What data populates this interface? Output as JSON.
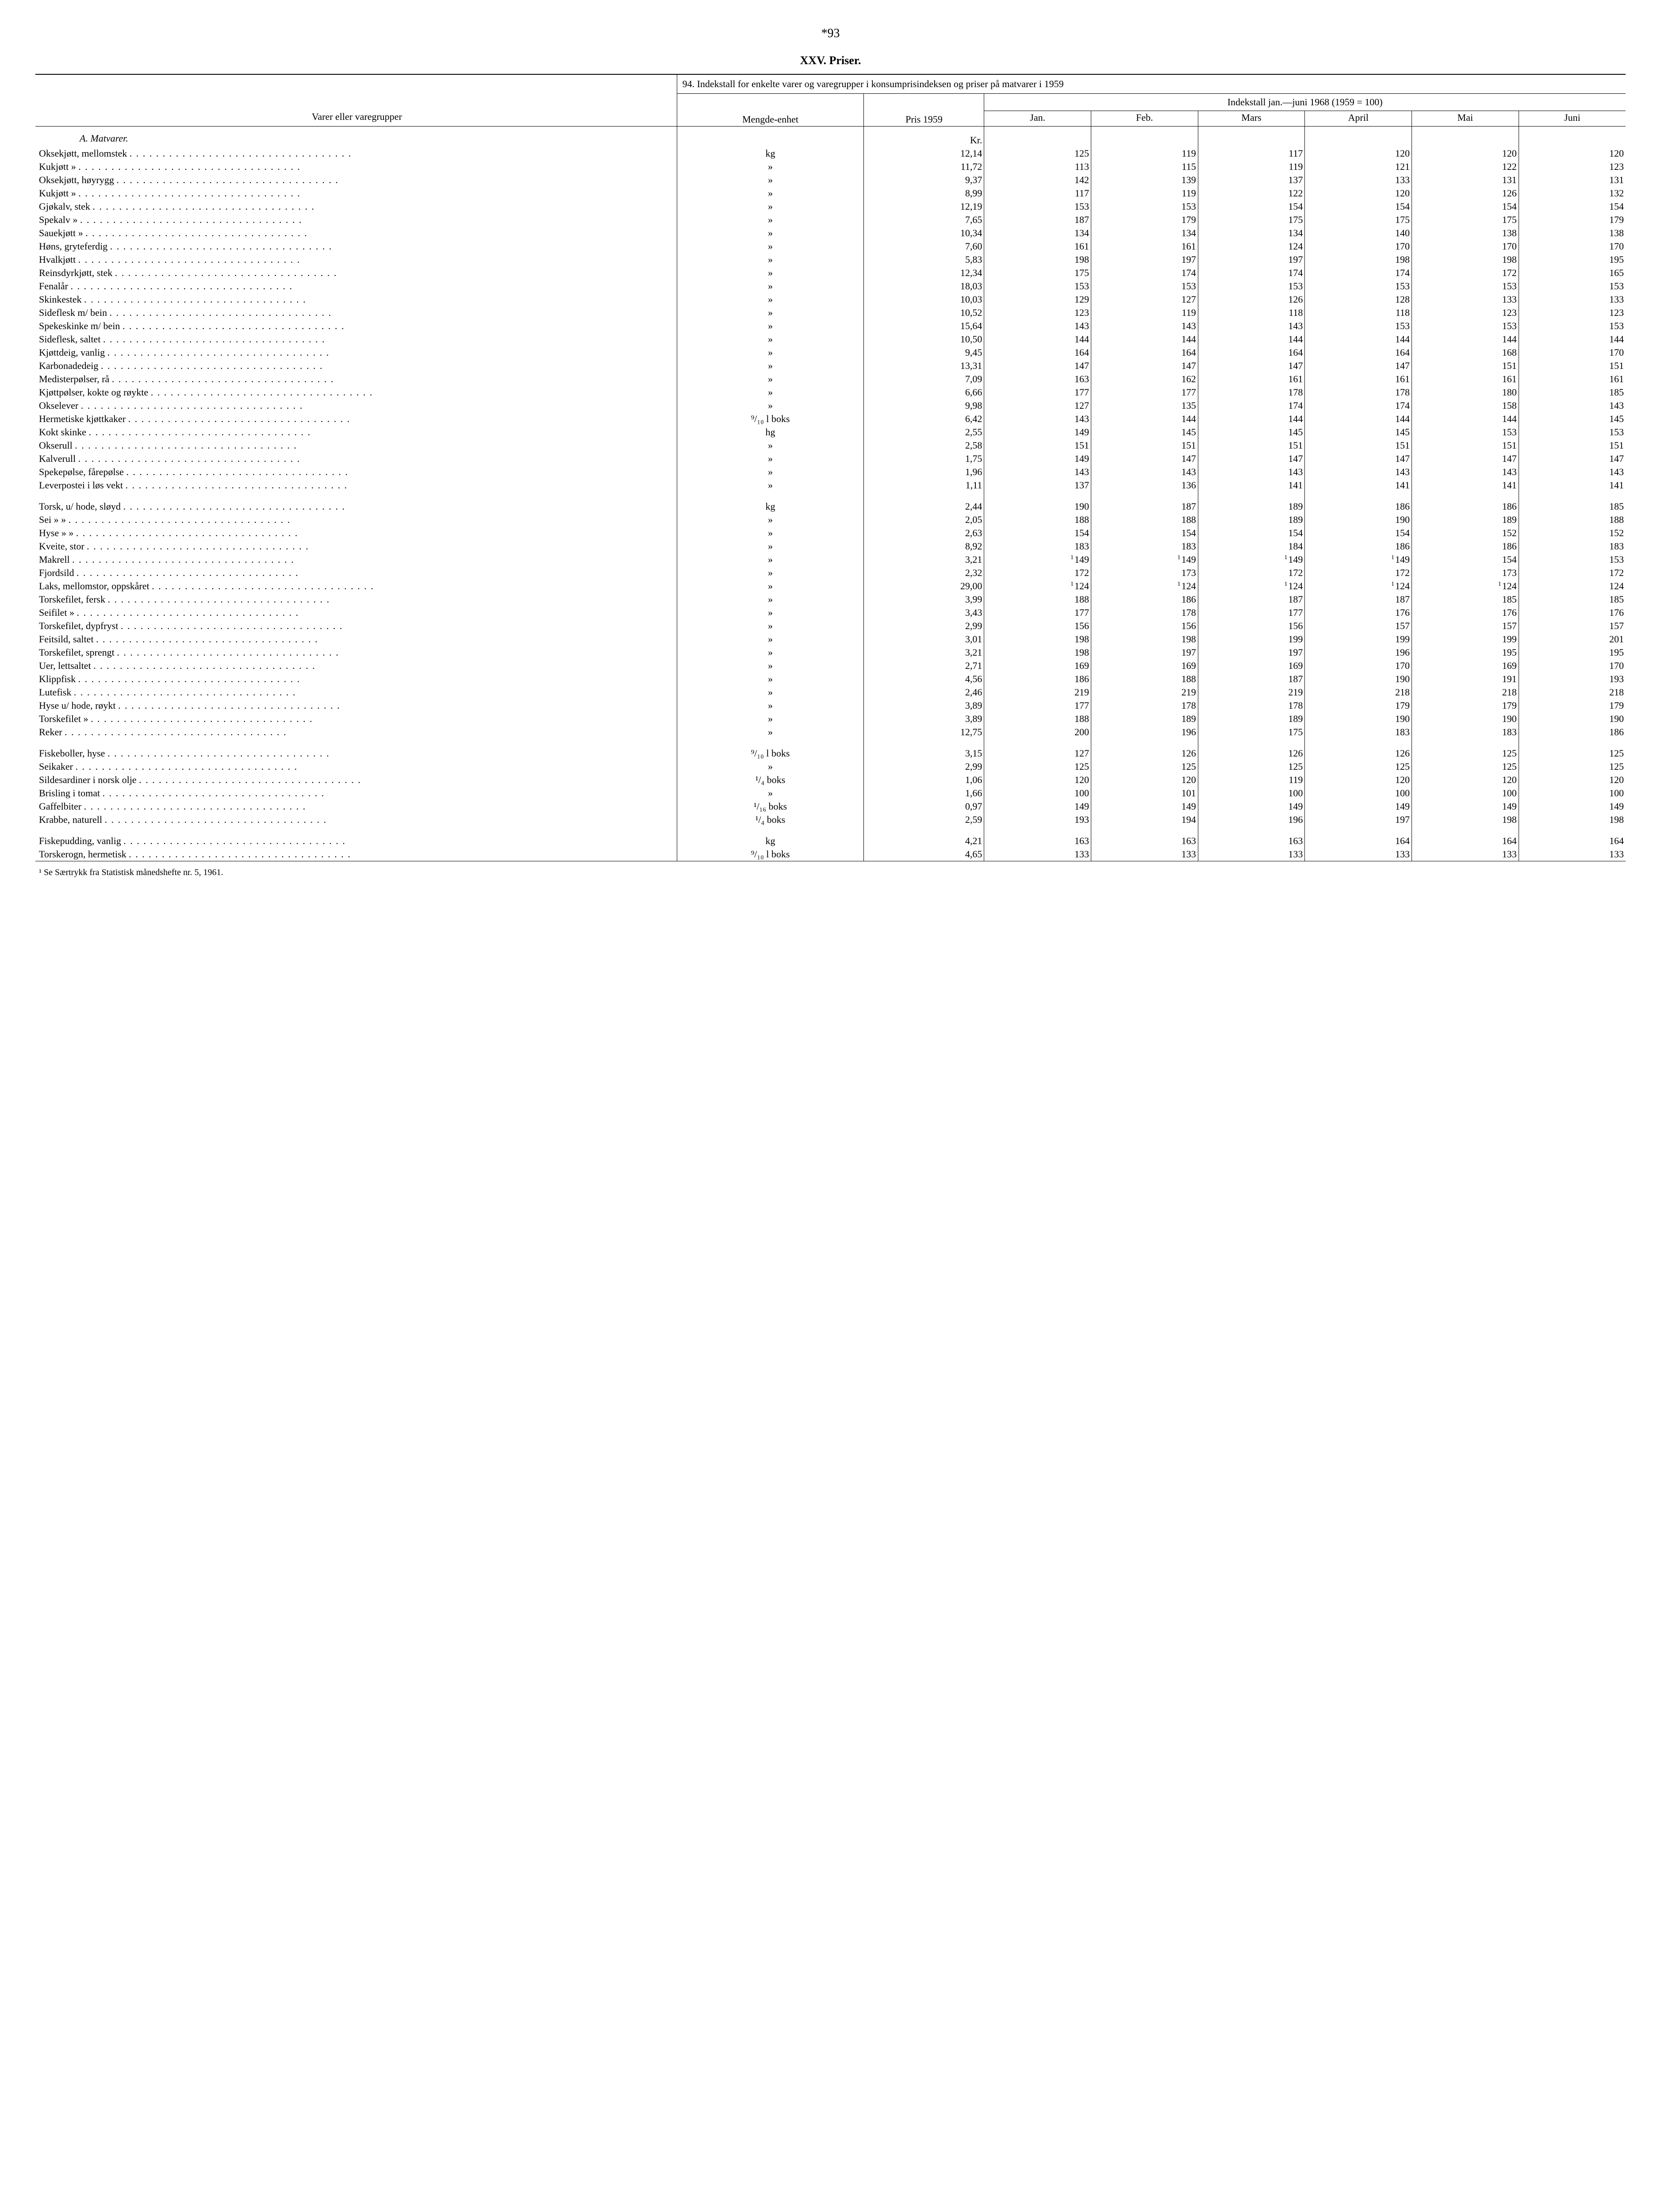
{
  "pageNumber": "*93",
  "sectionTitle": "XXV. Priser.",
  "tableCaption": "94. Indekstall for enkelte varer og varegrupper i konsumprisindeksen og priser på matvarer i 1959",
  "colHeaders": {
    "varer": "Varer eller varegrupper",
    "mengde": "Mengde-enhet",
    "pris": "Pris 1959",
    "indeksHeader": "Indekstall jan.—juni 1968 (1959 = 100)",
    "months": [
      "Jan.",
      "Feb.",
      "Mars",
      "April",
      "Mai",
      "Juni"
    ]
  },
  "groupTitle": "A. Matvarer.",
  "krLabel": "Kr.",
  "footnote": "¹ Se Særtrykk fra Statistisk månedshefte nr. 5, 1961.",
  "rows": [
    {
      "label": "Oksekjøtt, mellomstek",
      "unit": "kg",
      "price": "12,14",
      "idx": [
        "125",
        "119",
        "117",
        "120",
        "120",
        "120"
      ]
    },
    {
      "label": "Kukjøtt          »",
      "unit": "»",
      "price": "11,72",
      "idx": [
        "113",
        "115",
        "119",
        "121",
        "122",
        "123"
      ]
    },
    {
      "label": "Oksekjøtt, høyrygg",
      "unit": "»",
      "price": "9,37",
      "idx": [
        "142",
        "139",
        "137",
        "133",
        "131",
        "131"
      ]
    },
    {
      "label": "Kukjøtt          »",
      "unit": "»",
      "price": "8,99",
      "idx": [
        "117",
        "119",
        "122",
        "120",
        "126",
        "132"
      ]
    },
    {
      "label": "Gjøkalv, stek",
      "unit": "»",
      "price": "12,19",
      "idx": [
        "153",
        "153",
        "154",
        "154",
        "154",
        "154"
      ]
    },
    {
      "label": "Spekalv    »",
      "unit": "»",
      "price": "7,65",
      "idx": [
        "187",
        "179",
        "175",
        "175",
        "175",
        "179"
      ]
    },
    {
      "label": "Sauekjøtt »",
      "unit": "»",
      "price": "10,34",
      "idx": [
        "134",
        "134",
        "134",
        "140",
        "138",
        "138"
      ]
    },
    {
      "label": "Høns, gryteferdig",
      "unit": "»",
      "price": "7,60",
      "idx": [
        "161",
        "161",
        "124",
        "170",
        "170",
        "170"
      ]
    },
    {
      "label": "Hvalkjøtt",
      "unit": "»",
      "price": "5,83",
      "idx": [
        "198",
        "197",
        "197",
        "198",
        "198",
        "195"
      ]
    },
    {
      "label": "Reinsdyrkjøtt, stek",
      "unit": "»",
      "price": "12,34",
      "idx": [
        "175",
        "174",
        "174",
        "174",
        "172",
        "165"
      ]
    },
    {
      "label": "Fenalår",
      "unit": "»",
      "price": "18,03",
      "idx": [
        "153",
        "153",
        "153",
        "153",
        "153",
        "153"
      ]
    },
    {
      "label": "Skinkestek",
      "unit": "»",
      "price": "10,03",
      "idx": [
        "129",
        "127",
        "126",
        "128",
        "133",
        "133"
      ]
    },
    {
      "label": "Sideflesk m/ bein",
      "unit": "»",
      "price": "10,52",
      "idx": [
        "123",
        "119",
        "118",
        "118",
        "123",
        "123"
      ]
    },
    {
      "label": "Spekeskinke m/ bein",
      "unit": "»",
      "price": "15,64",
      "idx": [
        "143",
        "143",
        "143",
        "153",
        "153",
        "153"
      ]
    },
    {
      "label": "Sideflesk, saltet",
      "unit": "»",
      "price": "10,50",
      "idx": [
        "144",
        "144",
        "144",
        "144",
        "144",
        "144"
      ]
    },
    {
      "label": "Kjøttdeig, vanlig",
      "unit": "»",
      "price": "9,45",
      "idx": [
        "164",
        "164",
        "164",
        "164",
        "168",
        "170"
      ]
    },
    {
      "label": "Karbonadedeig",
      "unit": "»",
      "price": "13,31",
      "idx": [
        "147",
        "147",
        "147",
        "147",
        "151",
        "151"
      ]
    },
    {
      "label": "Medisterpølser, rå",
      "unit": "»",
      "price": "7,09",
      "idx": [
        "163",
        "162",
        "161",
        "161",
        "161",
        "161"
      ]
    },
    {
      "label": "Kjøttpølser, kokte og røykte",
      "unit": "»",
      "price": "6,66",
      "idx": [
        "177",
        "177",
        "178",
        "178",
        "180",
        "185"
      ]
    },
    {
      "label": "Okselever",
      "unit": "»",
      "price": "9,98",
      "idx": [
        "127",
        "135",
        "174",
        "174",
        "158",
        "143"
      ]
    },
    {
      "label": "Hermetiske kjøttkaker",
      "unit": "⁹/₁₀ l boks",
      "price": "6,42",
      "idx": [
        "143",
        "144",
        "144",
        "144",
        "144",
        "145"
      ]
    },
    {
      "label": "Kokt skinke",
      "unit": "hg",
      "price": "2,55",
      "idx": [
        "149",
        "145",
        "145",
        "145",
        "153",
        "153"
      ]
    },
    {
      "label": "Okserull",
      "unit": "»",
      "price": "2,58",
      "idx": [
        "151",
        "151",
        "151",
        "151",
        "151",
        "151"
      ]
    },
    {
      "label": "Kalverull",
      "unit": "»",
      "price": "1,75",
      "idx": [
        "149",
        "147",
        "147",
        "147",
        "147",
        "147"
      ]
    },
    {
      "label": "Spekepølse, fårepølse",
      "unit": "»",
      "price": "1,96",
      "idx": [
        "143",
        "143",
        "143",
        "143",
        "143",
        "143"
      ]
    },
    {
      "label": "Leverpostei i løs vekt",
      "unit": "»",
      "price": "1,11",
      "idx": [
        "137",
        "136",
        "141",
        "141",
        "141",
        "141"
      ]
    },
    {
      "spacer": true
    },
    {
      "label": "Torsk, u/ hode, sløyd",
      "unit": "kg",
      "price": "2,44",
      "idx": [
        "190",
        "187",
        "189",
        "186",
        "186",
        "185"
      ]
    },
    {
      "label": "Sei          »          »",
      "unit": "»",
      "price": "2,05",
      "idx": [
        "188",
        "188",
        "189",
        "190",
        "189",
        "188"
      ]
    },
    {
      "label": "Hyse        »          »",
      "unit": "»",
      "price": "2,63",
      "idx": [
        "154",
        "154",
        "154",
        "154",
        "152",
        "152"
      ]
    },
    {
      "label": "Kveite, stor",
      "unit": "»",
      "price": "8,92",
      "idx": [
        "183",
        "183",
        "184",
        "186",
        "186",
        "183"
      ]
    },
    {
      "label": "Makrell",
      "unit": "»",
      "price": "3,21",
      "idx": [
        "149",
        "149",
        "149",
        "149",
        "154",
        "153"
      ],
      "supIdx": [
        0,
        1,
        2,
        3
      ]
    },
    {
      "label": "Fjordsild",
      "unit": "»",
      "price": "2,32",
      "idx": [
        "172",
        "173",
        "172",
        "172",
        "173",
        "172"
      ]
    },
    {
      "label": "Laks, mellomstor, oppskåret",
      "unit": "»",
      "price": "29,00",
      "idx": [
        "124",
        "124",
        "124",
        "124",
        "124",
        "124"
      ],
      "supIdx": [
        0,
        1,
        2,
        3,
        4
      ]
    },
    {
      "label": "Torskefilet, fersk",
      "unit": "»",
      "price": "3,99",
      "idx": [
        "188",
        "186",
        "187",
        "187",
        "185",
        "185"
      ]
    },
    {
      "label": "Seifilet          »",
      "unit": "»",
      "price": "3,43",
      "idx": [
        "177",
        "178",
        "177",
        "176",
        "176",
        "176"
      ]
    },
    {
      "label": "Torskefilet, dypfryst",
      "unit": "»",
      "price": "2,99",
      "idx": [
        "156",
        "156",
        "156",
        "157",
        "157",
        "157"
      ]
    },
    {
      "label": "Feitsild, saltet",
      "unit": "»",
      "price": "3,01",
      "idx": [
        "198",
        "198",
        "199",
        "199",
        "199",
        "201"
      ]
    },
    {
      "label": "Torskefilet, sprengt",
      "unit": "»",
      "price": "3,21",
      "idx": [
        "198",
        "197",
        "197",
        "196",
        "195",
        "195"
      ]
    },
    {
      "label": "Uer, lettsaltet",
      "unit": "»",
      "price": "2,71",
      "idx": [
        "169",
        "169",
        "169",
        "170",
        "169",
        "170"
      ]
    },
    {
      "label": "Klippfisk",
      "unit": "»",
      "price": "4,56",
      "idx": [
        "186",
        "188",
        "187",
        "190",
        "191",
        "193"
      ]
    },
    {
      "label": "Lutefisk",
      "unit": "»",
      "price": "2,46",
      "idx": [
        "219",
        "219",
        "219",
        "218",
        "218",
        "218"
      ]
    },
    {
      "label": "Hyse u/ hode, røykt",
      "unit": "»",
      "price": "3,89",
      "idx": [
        "177",
        "178",
        "178",
        "179",
        "179",
        "179"
      ]
    },
    {
      "label": "Torskefilet          »",
      "unit": "»",
      "price": "3,89",
      "idx": [
        "188",
        "189",
        "189",
        "190",
        "190",
        "190"
      ]
    },
    {
      "label": "Reker",
      "unit": "»",
      "price": "12,75",
      "idx": [
        "200",
        "196",
        "175",
        "183",
        "183",
        "186"
      ]
    },
    {
      "spacer": true
    },
    {
      "label": "Fiskeboller, hyse",
      "unit": "⁹/₁₀ l boks",
      "price": "3,15",
      "idx": [
        "127",
        "126",
        "126",
        "126",
        "125",
        "125"
      ]
    },
    {
      "label": "Seikaker",
      "unit": "»",
      "price": "2,99",
      "idx": [
        "125",
        "125",
        "125",
        "125",
        "125",
        "125"
      ]
    },
    {
      "label": "Sildesardiner i norsk olje",
      "unit": "¹/₄ boks",
      "price": "1,06",
      "idx": [
        "120",
        "120",
        "119",
        "120",
        "120",
        "120"
      ]
    },
    {
      "label": "Brisling i tomat",
      "unit": "»",
      "price": "1,66",
      "idx": [
        "100",
        "101",
        "100",
        "100",
        "100",
        "100"
      ]
    },
    {
      "label": "Gaffelbiter",
      "unit": "¹/₁₆ boks",
      "price": "0,97",
      "idx": [
        "149",
        "149",
        "149",
        "149",
        "149",
        "149"
      ]
    },
    {
      "label": "Krabbe, naturell",
      "unit": "¹/₄ boks",
      "price": "2,59",
      "idx": [
        "193",
        "194",
        "196",
        "197",
        "198",
        "198"
      ]
    },
    {
      "spacer": true
    },
    {
      "label": "Fiskepudding, vanlig",
      "unit": "kg",
      "price": "4,21",
      "idx": [
        "163",
        "163",
        "163",
        "164",
        "164",
        "164"
      ]
    },
    {
      "label": "Torskerogn, hermetisk",
      "unit": "⁹/₁₀ l boks",
      "price": "4,65",
      "idx": [
        "133",
        "133",
        "133",
        "133",
        "133",
        "133"
      ]
    }
  ]
}
